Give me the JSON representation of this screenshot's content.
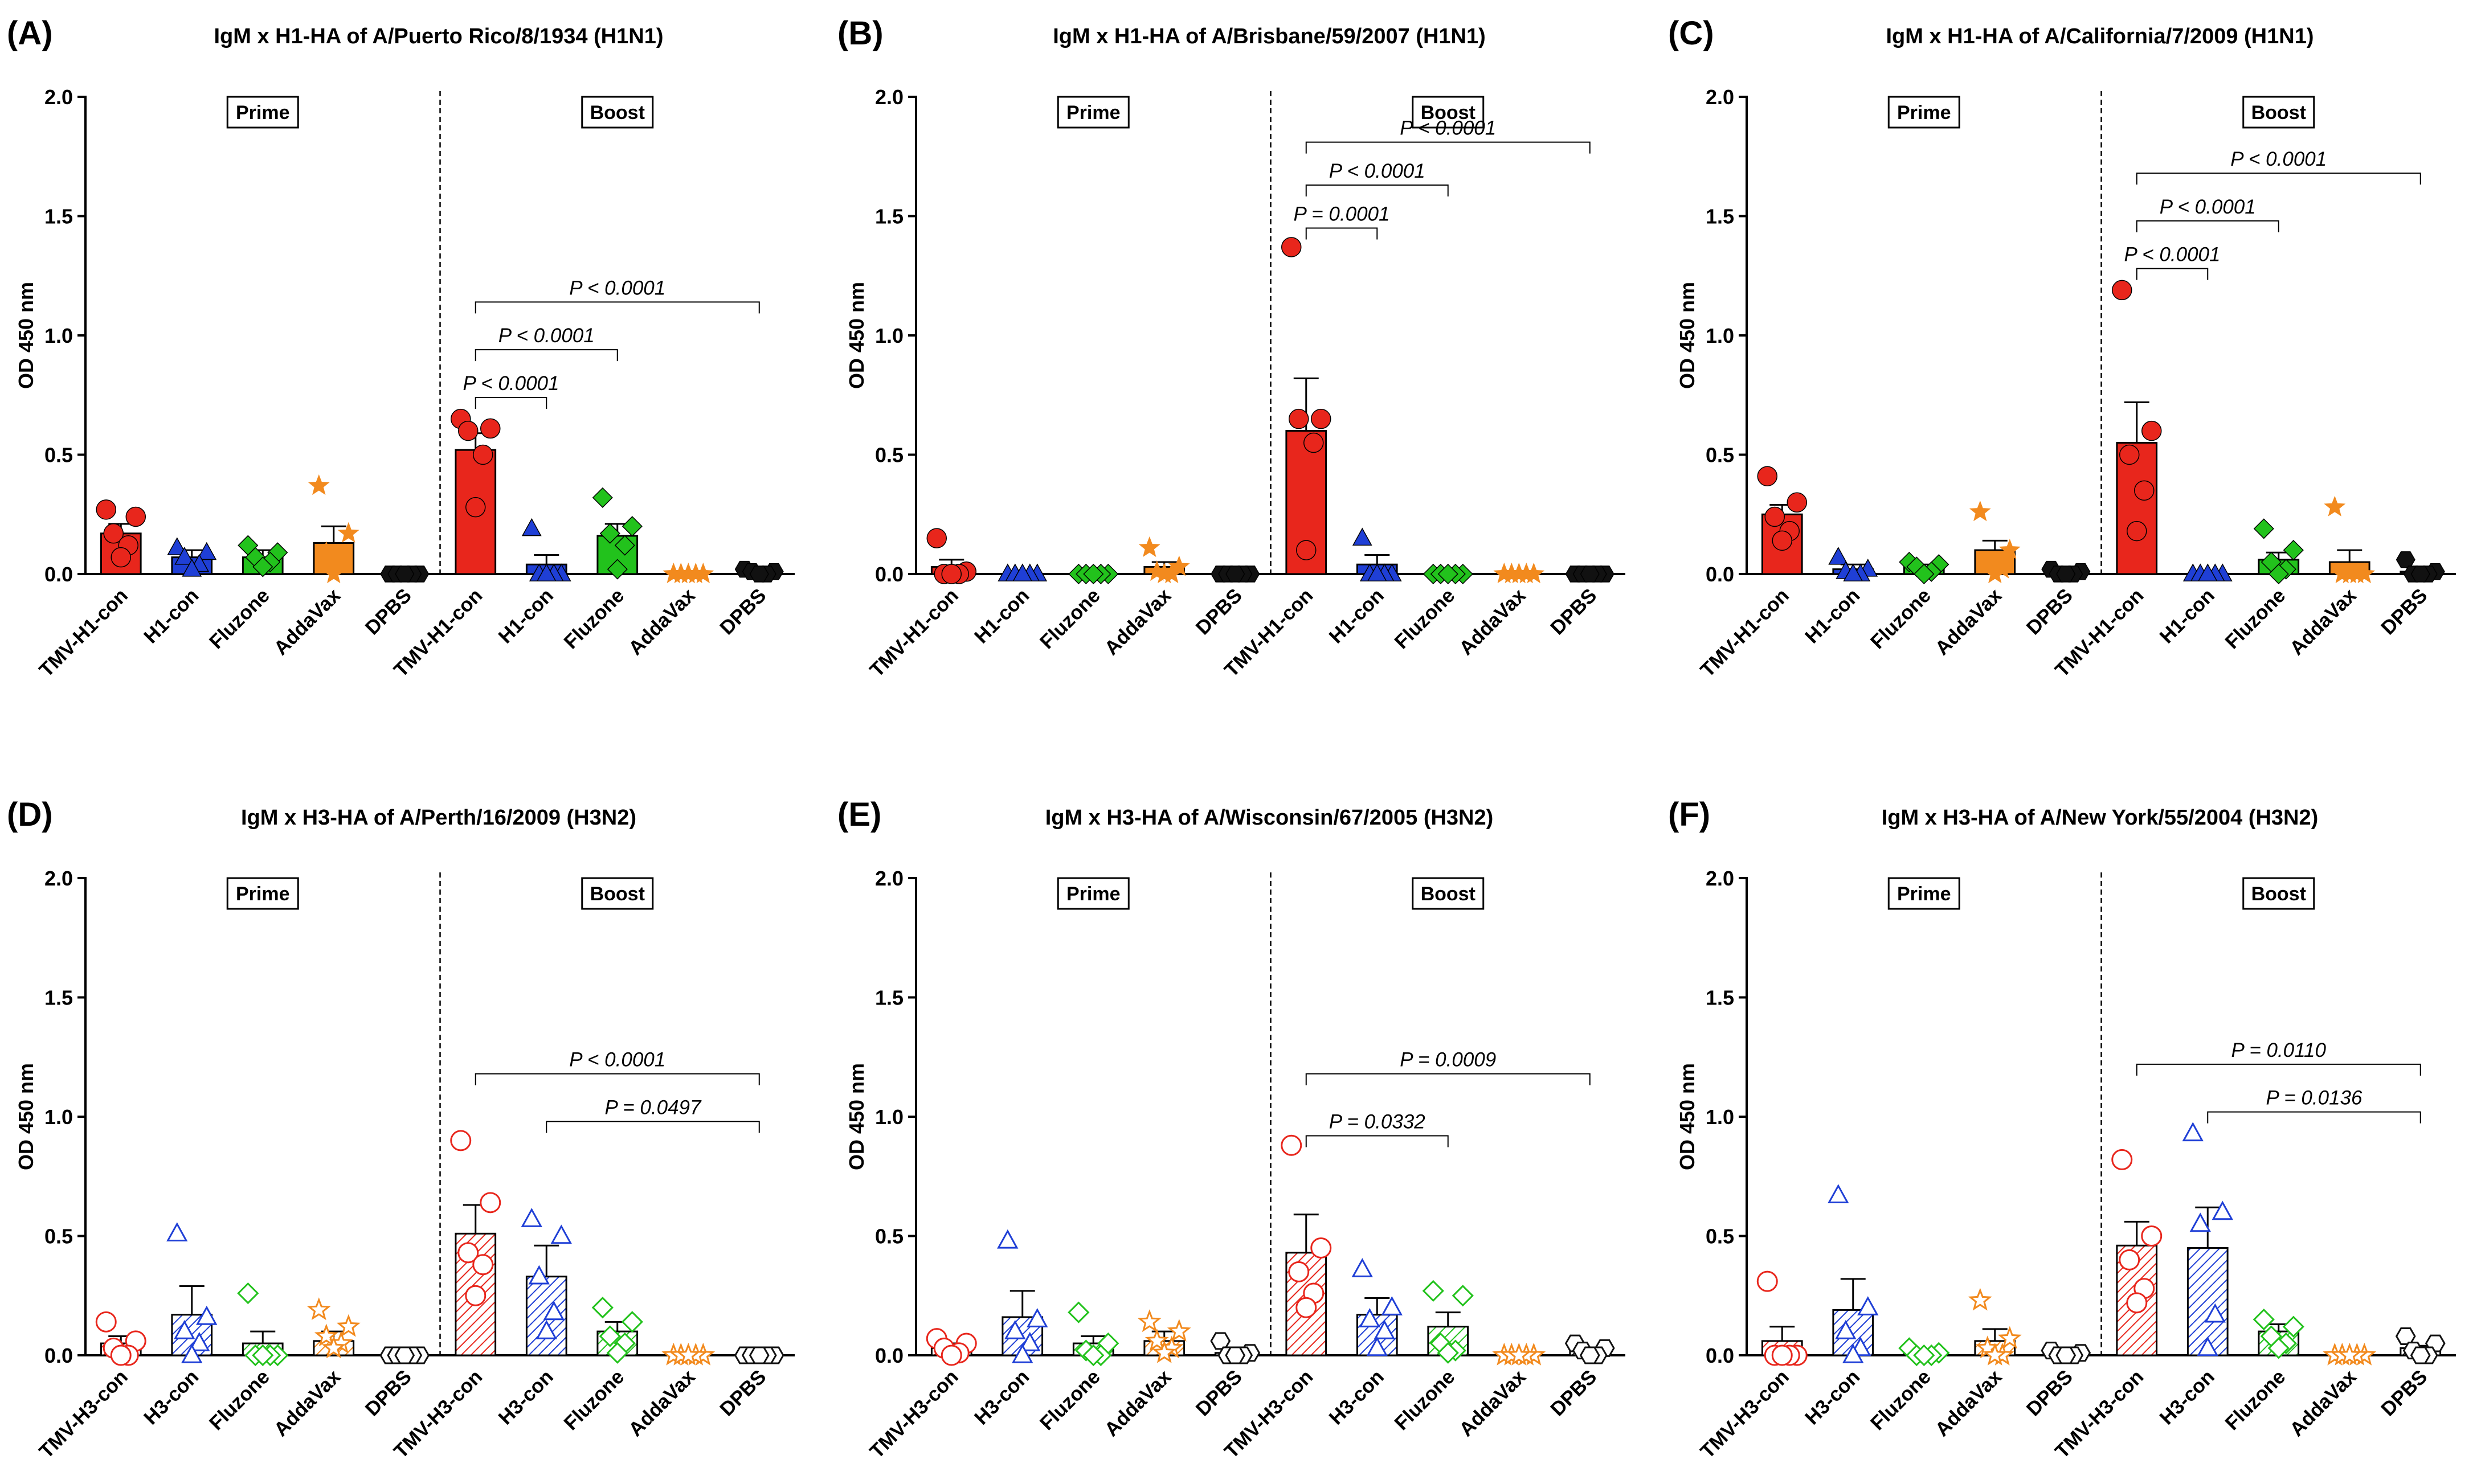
{
  "figure": {
    "group_colors": {
      "TMV": "#e8261c",
      "Hcon": "#1f3fd6",
      "Fluzone": "#22c21c",
      "AddaVax": "#f28a1e",
      "DPBS": "#111111"
    }
  },
  "chart_data": [
    {
      "type": "bar",
      "panel_label": "(A)",
      "title": "IgM x H1-HA of A/Puerto Rico/8/1934 (H1N1)",
      "ylabel": "OD 450 nm",
      "ylim": [
        0,
        2.0
      ],
      "yticks": [
        "0.0",
        "0.5",
        "1.0",
        "1.5",
        "2.0"
      ],
      "fill": "solid",
      "categories": [
        "TMV-H1-con",
        "H1-con",
        "Fluzone",
        "AddaVax",
        "DPBS",
        "TMV-H1-con",
        "H1-con",
        "Fluzone",
        "AddaVax",
        "DPBS"
      ],
      "groups": [
        "TMV",
        "Hcon",
        "Fluzone",
        "AddaVax",
        "DPBS",
        "TMV",
        "Hcon",
        "Fluzone",
        "AddaVax",
        "DPBS"
      ],
      "phase_labels": [
        "Prime",
        "Boost"
      ],
      "means": [
        0.17,
        0.07,
        0.07,
        0.13,
        0.0,
        0.52,
        0.04,
        0.16,
        0.0,
        0.01
      ],
      "sem": [
        0.04,
        0.03,
        0.03,
        0.07,
        0.005,
        0.07,
        0.04,
        0.05,
        0.0,
        0.005
      ],
      "points": [
        [
          0.27,
          0.24,
          0.17,
          0.12,
          0.07
        ],
        [
          0.11,
          0.09,
          0.07,
          0.04,
          0.02
        ],
        [
          0.12,
          0.09,
          0.07,
          0.05,
          0.03
        ],
        [
          0.37,
          0.17,
          0.09,
          0.05,
          0.0
        ],
        [
          0.0,
          0.0,
          0.0,
          0.0,
          0.0
        ],
        [
          0.65,
          0.61,
          0.6,
          0.5,
          0.28
        ],
        [
          0.19,
          0.0,
          0.0,
          0.0,
          0.0
        ],
        [
          0.32,
          0.2,
          0.17,
          0.12,
          0.02
        ],
        [
          0.0,
          0.0,
          0.0,
          0.0,
          0.0
        ],
        [
          0.02,
          0.01,
          0.01,
          0.0,
          0.0
        ]
      ],
      "comparisons": [
        {
          "from": 5,
          "to": 6,
          "label": "P < 0.0001",
          "y": 0.74
        },
        {
          "from": 5,
          "to": 7,
          "label": "P < 0.0001",
          "y": 0.94
        },
        {
          "from": 5,
          "to": 9,
          "label": "P < 0.0001",
          "y": 1.14
        }
      ]
    },
    {
      "type": "bar",
      "panel_label": "(B)",
      "title": "IgM x H1-HA of A/Brisbane/59/2007 (H1N1)",
      "ylabel": "OD 450 nm",
      "ylim": [
        0,
        2.0
      ],
      "yticks": [
        "0.0",
        "0.5",
        "1.0",
        "1.5",
        "2.0"
      ],
      "fill": "solid",
      "categories": [
        "TMV-H1-con",
        "H1-con",
        "Fluzone",
        "AddaVax",
        "DPBS",
        "TMV-H1-con",
        "H1-con",
        "Fluzone",
        "AddaVax",
        "DPBS"
      ],
      "groups": [
        "TMV",
        "Hcon",
        "Fluzone",
        "AddaVax",
        "DPBS",
        "TMV",
        "Hcon",
        "Fluzone",
        "AddaVax",
        "DPBS"
      ],
      "phase_labels": [
        "Prime",
        "Boost"
      ],
      "means": [
        0.03,
        0.0,
        0.0,
        0.03,
        0.0,
        0.6,
        0.04,
        0.0,
        0.0,
        0.0
      ],
      "sem": [
        0.03,
        0.0,
        0.0,
        0.02,
        0.0,
        0.22,
        0.04,
        0.0,
        0.0,
        0.0
      ],
      "points": [
        [
          0.15,
          0.01,
          0.0,
          0.0,
          0.0
        ],
        [
          0.0,
          0.0,
          0.0,
          0.0,
          0.0
        ],
        [
          0.0,
          0.0,
          0.0,
          0.0,
          0.0
        ],
        [
          0.11,
          0.03,
          0.01,
          0.0,
          0.0
        ],
        [
          0.0,
          0.0,
          0.0,
          0.0,
          0.0
        ],
        [
          1.37,
          0.65,
          0.65,
          0.55,
          0.1
        ],
        [
          0.15,
          0.0,
          0.0,
          0.0,
          0.0
        ],
        [
          0.0,
          0.0,
          0.0,
          0.0,
          0.0
        ],
        [
          0.0,
          0.0,
          0.0,
          0.0,
          0.0
        ],
        [
          0.0,
          0.0,
          0.0,
          0.0,
          0.0
        ]
      ],
      "comparisons": [
        {
          "from": 5,
          "to": 6,
          "label": "P = 0.0001",
          "y": 1.45
        },
        {
          "from": 5,
          "to": 7,
          "label": "P < 0.0001",
          "y": 1.63
        },
        {
          "from": 5,
          "to": 9,
          "label": "P < 0.0001",
          "y": 1.81
        }
      ]
    },
    {
      "type": "bar",
      "panel_label": "(C)",
      "title": "IgM x H1-HA of A/California/7/2009 (H1N1)",
      "ylabel": "OD 450 nm",
      "ylim": [
        0,
        2.0
      ],
      "yticks": [
        "0.0",
        "0.5",
        "1.0",
        "1.5",
        "2.0"
      ],
      "fill": "solid",
      "categories": [
        "TMV-H1-con",
        "H1-con",
        "Fluzone",
        "AddaVax",
        "DPBS",
        "TMV-H1-con",
        "H1-con",
        "Fluzone",
        "AddaVax",
        "DPBS"
      ],
      "groups": [
        "TMV",
        "Hcon",
        "Fluzone",
        "AddaVax",
        "DPBS",
        "TMV",
        "Hcon",
        "Fluzone",
        "AddaVax",
        "DPBS"
      ],
      "phase_labels": [
        "Prime",
        "Boost"
      ],
      "means": [
        0.25,
        0.02,
        0.03,
        0.1,
        0.01,
        0.55,
        0.0,
        0.06,
        0.05,
        0.01
      ],
      "sem": [
        0.04,
        0.02,
        0.01,
        0.04,
        0.005,
        0.17,
        0.0,
        0.03,
        0.05,
        0.01
      ],
      "points": [
        [
          0.41,
          0.3,
          0.24,
          0.18,
          0.14
        ],
        [
          0.07,
          0.02,
          0.01,
          0.0,
          0.0
        ],
        [
          0.05,
          0.04,
          0.03,
          0.01,
          0.0
        ],
        [
          0.26,
          0.1,
          0.05,
          0.02,
          0.0
        ],
        [
          0.02,
          0.01,
          0.0,
          0.0,
          0.0
        ],
        [
          1.19,
          0.6,
          0.5,
          0.35,
          0.18
        ],
        [
          0.0,
          0.0,
          0.0,
          0.0,
          0.0
        ],
        [
          0.19,
          0.1,
          0.05,
          0.02,
          0.0
        ],
        [
          0.28,
          0.0,
          0.0,
          0.0,
          0.0
        ],
        [
          0.06,
          0.01,
          0.0,
          0.0,
          0.0
        ]
      ],
      "comparisons": [
        {
          "from": 5,
          "to": 6,
          "label": "P < 0.0001",
          "y": 1.28
        },
        {
          "from": 5,
          "to": 7,
          "label": "P < 0.0001",
          "y": 1.48
        },
        {
          "from": 5,
          "to": 9,
          "label": "P < 0.0001",
          "y": 1.68
        }
      ]
    },
    {
      "type": "bar",
      "panel_label": "(D)",
      "title": "IgM x H3-HA of A/Perth/16/2009 (H3N2)",
      "ylabel": "OD 450 nm",
      "ylim": [
        0,
        2.0
      ],
      "yticks": [
        "0.0",
        "0.5",
        "1.0",
        "1.5",
        "2.0"
      ],
      "fill": "hatched",
      "categories": [
        "TMV-H3-con",
        "H3-con",
        "Fluzone",
        "AddaVax",
        "DPBS",
        "TMV-H3-con",
        "H3-con",
        "Fluzone",
        "AddaVax",
        "DPBS"
      ],
      "groups": [
        "TMV",
        "Hcon",
        "Fluzone",
        "AddaVax",
        "DPBS",
        "TMV",
        "Hcon",
        "Fluzone",
        "AddaVax",
        "DPBS"
      ],
      "phase_labels": [
        "Prime",
        "Boost"
      ],
      "means": [
        0.05,
        0.17,
        0.05,
        0.06,
        0.0,
        0.51,
        0.33,
        0.1,
        0.0,
        0.0
      ],
      "sem": [
        0.03,
        0.12,
        0.05,
        0.04,
        0.0,
        0.12,
        0.13,
        0.04,
        0.0,
        0.0
      ],
      "points": [
        [
          0.14,
          0.06,
          0.03,
          0.0,
          0.0
        ],
        [
          0.51,
          0.16,
          0.1,
          0.05,
          0.0
        ],
        [
          0.26,
          0.0,
          0.0,
          0.0,
          0.0
        ],
        [
          0.19,
          0.12,
          0.08,
          0.05,
          0.03
        ],
        [
          0.0,
          0.0,
          0.0,
          0.0,
          0.0
        ],
        [
          0.9,
          0.64,
          0.43,
          0.38,
          0.25
        ],
        [
          0.57,
          0.5,
          0.33,
          0.18,
          0.1
        ],
        [
          0.2,
          0.14,
          0.08,
          0.05,
          0.01
        ],
        [
          0.0,
          0.0,
          0.0,
          0.0,
          0.0
        ],
        [
          0.0,
          0.0,
          0.0,
          0.0,
          0.0
        ]
      ],
      "comparisons": [
        {
          "from": 6,
          "to": 9,
          "label": "P = 0.0497",
          "y": 0.98
        },
        {
          "from": 5,
          "to": 9,
          "label": "P < 0.0001",
          "y": 1.18
        }
      ]
    },
    {
      "type": "bar",
      "panel_label": "(E)",
      "title": "IgM x H3-HA of A/Wisconsin/67/2005 (H3N2)",
      "ylabel": "OD 450 nm",
      "ylim": [
        0,
        2.0
      ],
      "yticks": [
        "0.0",
        "0.5",
        "1.0",
        "1.5",
        "2.0"
      ],
      "fill": "hatched",
      "categories": [
        "TMV-H3-con",
        "H3-con",
        "Fluzone",
        "AddaVax",
        "DPBS",
        "TMV-H3-con",
        "H3-con",
        "Fluzone",
        "AddaVax",
        "DPBS"
      ],
      "groups": [
        "TMV",
        "Hcon",
        "Fluzone",
        "AddaVax",
        "DPBS",
        "TMV",
        "Hcon",
        "Fluzone",
        "AddaVax",
        "DPBS"
      ],
      "phase_labels": [
        "Prime",
        "Boost"
      ],
      "means": [
        0.03,
        0.16,
        0.05,
        0.06,
        0.01,
        0.43,
        0.17,
        0.12,
        0.0,
        0.02
      ],
      "sem": [
        0.02,
        0.11,
        0.03,
        0.04,
        0.01,
        0.16,
        0.07,
        0.06,
        0.0,
        0.01
      ],
      "points": [
        [
          0.07,
          0.05,
          0.03,
          0.01,
          0.0
        ],
        [
          0.48,
          0.15,
          0.1,
          0.05,
          0.0
        ],
        [
          0.18,
          0.05,
          0.02,
          0.0,
          0.0
        ],
        [
          0.14,
          0.1,
          0.06,
          0.03,
          0.01
        ],
        [
          0.06,
          0.01,
          0.0,
          0.0,
          0.0
        ],
        [
          0.88,
          0.45,
          0.35,
          0.26,
          0.2
        ],
        [
          0.36,
          0.2,
          0.15,
          0.1,
          0.03
        ],
        [
          0.27,
          0.25,
          0.05,
          0.02,
          0.01
        ],
        [
          0.0,
          0.0,
          0.0,
          0.0,
          0.0
        ],
        [
          0.05,
          0.03,
          0.02,
          0.0,
          0.0
        ]
      ],
      "comparisons": [
        {
          "from": 5,
          "to": 7,
          "label": "P = 0.0332",
          "y": 0.92
        },
        {
          "from": 5,
          "to": 9,
          "label": "P = 0.0009",
          "y": 1.18
        }
      ]
    },
    {
      "type": "bar",
      "panel_label": "(F)",
      "title": "IgM x H3-HA of A/New York/55/2004 (H3N2)",
      "ylabel": "OD 450 nm",
      "ylim": [
        0,
        2.0
      ],
      "yticks": [
        "0.0",
        "0.5",
        "1.0",
        "1.5",
        "2.0"
      ],
      "fill": "hatched",
      "categories": [
        "TMV-H3-con",
        "H3-con",
        "Fluzone",
        "AddaVax",
        "DPBS",
        "TMV-H3-con",
        "H3-con",
        "Fluzone",
        "AddaVax",
        "DPBS"
      ],
      "groups": [
        "TMV",
        "Hcon",
        "Fluzone",
        "AddaVax",
        "DPBS",
        "TMV",
        "Hcon",
        "Fluzone",
        "AddaVax",
        "DPBS"
      ],
      "phase_labels": [
        "Prime",
        "Boost"
      ],
      "means": [
        0.06,
        0.19,
        0.01,
        0.06,
        0.01,
        0.46,
        0.45,
        0.1,
        0.0,
        0.03
      ],
      "sem": [
        0.06,
        0.13,
        0.01,
        0.05,
        0.005,
        0.1,
        0.17,
        0.03,
        0.0,
        0.01
      ],
      "points": [
        [
          0.31,
          0.0,
          0.0,
          0.0,
          0.0
        ],
        [
          0.67,
          0.2,
          0.1,
          0.03,
          0.0
        ],
        [
          0.03,
          0.01,
          0.0,
          0.0,
          0.0
        ],
        [
          0.23,
          0.07,
          0.03,
          0.0,
          0.0
        ],
        [
          0.02,
          0.01,
          0.0,
          0.0,
          0.0
        ],
        [
          0.82,
          0.5,
          0.4,
          0.28,
          0.22
        ],
        [
          0.93,
          0.6,
          0.55,
          0.17,
          0.03
        ],
        [
          0.15,
          0.12,
          0.08,
          0.05,
          0.03
        ],
        [
          0.0,
          0.0,
          0.0,
          0.0,
          0.0
        ],
        [
          0.08,
          0.05,
          0.02,
          0.0,
          0.0
        ]
      ],
      "comparisons": [
        {
          "from": 6,
          "to": 9,
          "label": "P = 0.0136",
          "y": 1.02
        },
        {
          "from": 5,
          "to": 9,
          "label": "P = 0.0110",
          "y": 1.22
        }
      ]
    }
  ]
}
